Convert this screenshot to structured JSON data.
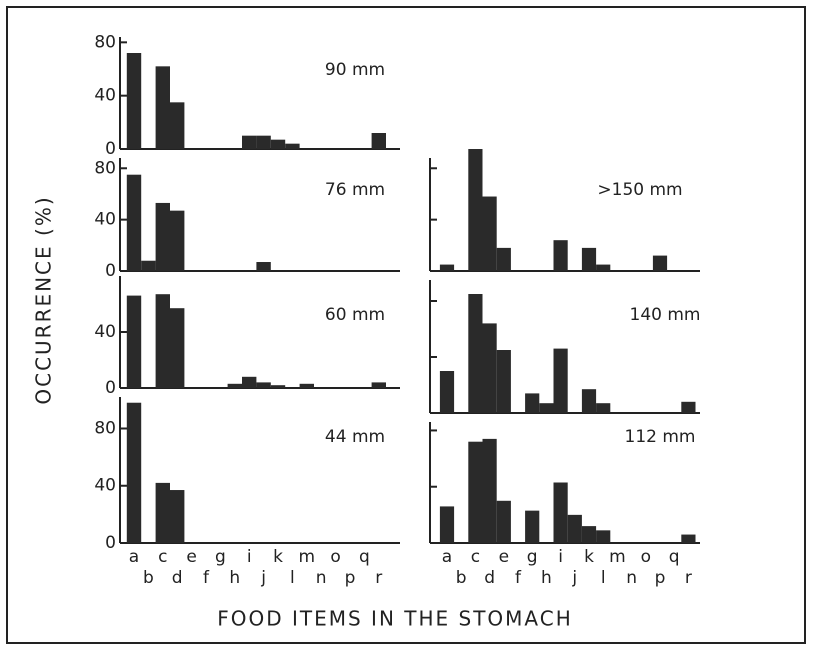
{
  "ylabel": "OCCURRENCE (%)",
  "xlabel": "FOOD ITEMS IN THE STOMACH",
  "categories": [
    "a",
    "b",
    "c",
    "d",
    "e",
    "f",
    "g",
    "h",
    "i",
    "j",
    "k",
    "l",
    "m",
    "n",
    "o",
    "p",
    "q",
    "r"
  ],
  "chart_data": [
    {
      "type": "bar",
      "title": "90 mm",
      "values": [
        72,
        0,
        62,
        35,
        0,
        0,
        0,
        0,
        10,
        10,
        7,
        4,
        0,
        0,
        0,
        0,
        0,
        12
      ],
      "ylim": [
        0,
        84
      ],
      "yticks": [
        0,
        40,
        80
      ]
    },
    {
      "type": "bar",
      "title": "76 mm",
      "values": [
        75,
        8,
        53,
        47,
        0,
        0,
        0,
        0,
        0,
        7,
        0,
        0,
        0,
        0,
        0,
        0,
        0,
        0
      ],
      "ylim": [
        0,
        88
      ],
      "yticks": [
        0,
        40,
        80
      ]
    },
    {
      "type": "bar",
      "title": "60 mm",
      "values": [
        66,
        0,
        67,
        57,
        0,
        0,
        0,
        3,
        8,
        4,
        2,
        0,
        3,
        0,
        0,
        0,
        0,
        4
      ],
      "ylim": [
        0,
        80
      ],
      "yticks": [
        0,
        40
      ]
    },
    {
      "type": "bar",
      "title": "44 mm",
      "values": [
        98,
        0,
        42,
        37,
        0,
        0,
        0,
        0,
        0,
        0,
        0,
        0,
        0,
        0,
        0,
        0,
        0,
        0
      ],
      "ylim": [
        0,
        102
      ],
      "yticks": [
        0,
        40,
        80
      ]
    },
    {
      "type": "bar",
      "title": ">150 mm",
      "values": [
        5,
        0,
        95,
        58,
        18,
        0,
        0,
        0,
        24,
        0,
        18,
        5,
        0,
        0,
        0,
        12,
        0,
        0
      ],
      "ylim": [
        0,
        88
      ],
      "yticks": [
        0,
        40,
        80
      ]
    },
    {
      "type": "bar",
      "title": "140 mm",
      "values": [
        30,
        0,
        85,
        64,
        45,
        0,
        14,
        7,
        46,
        0,
        17,
        7,
        0,
        0,
        0,
        0,
        0,
        8
      ],
      "ylim": [
        0,
        95
      ],
      "yticks": [
        0,
        40,
        80
      ]
    },
    {
      "type": "bar",
      "title": "112 mm",
      "values": [
        26,
        0,
        72,
        74,
        30,
        0,
        23,
        0,
        43,
        20,
        12,
        9,
        0,
        0,
        0,
        0,
        0,
        6
      ],
      "ylim": [
        0,
        86
      ],
      "yticks": [
        0,
        40,
        80
      ]
    }
  ]
}
